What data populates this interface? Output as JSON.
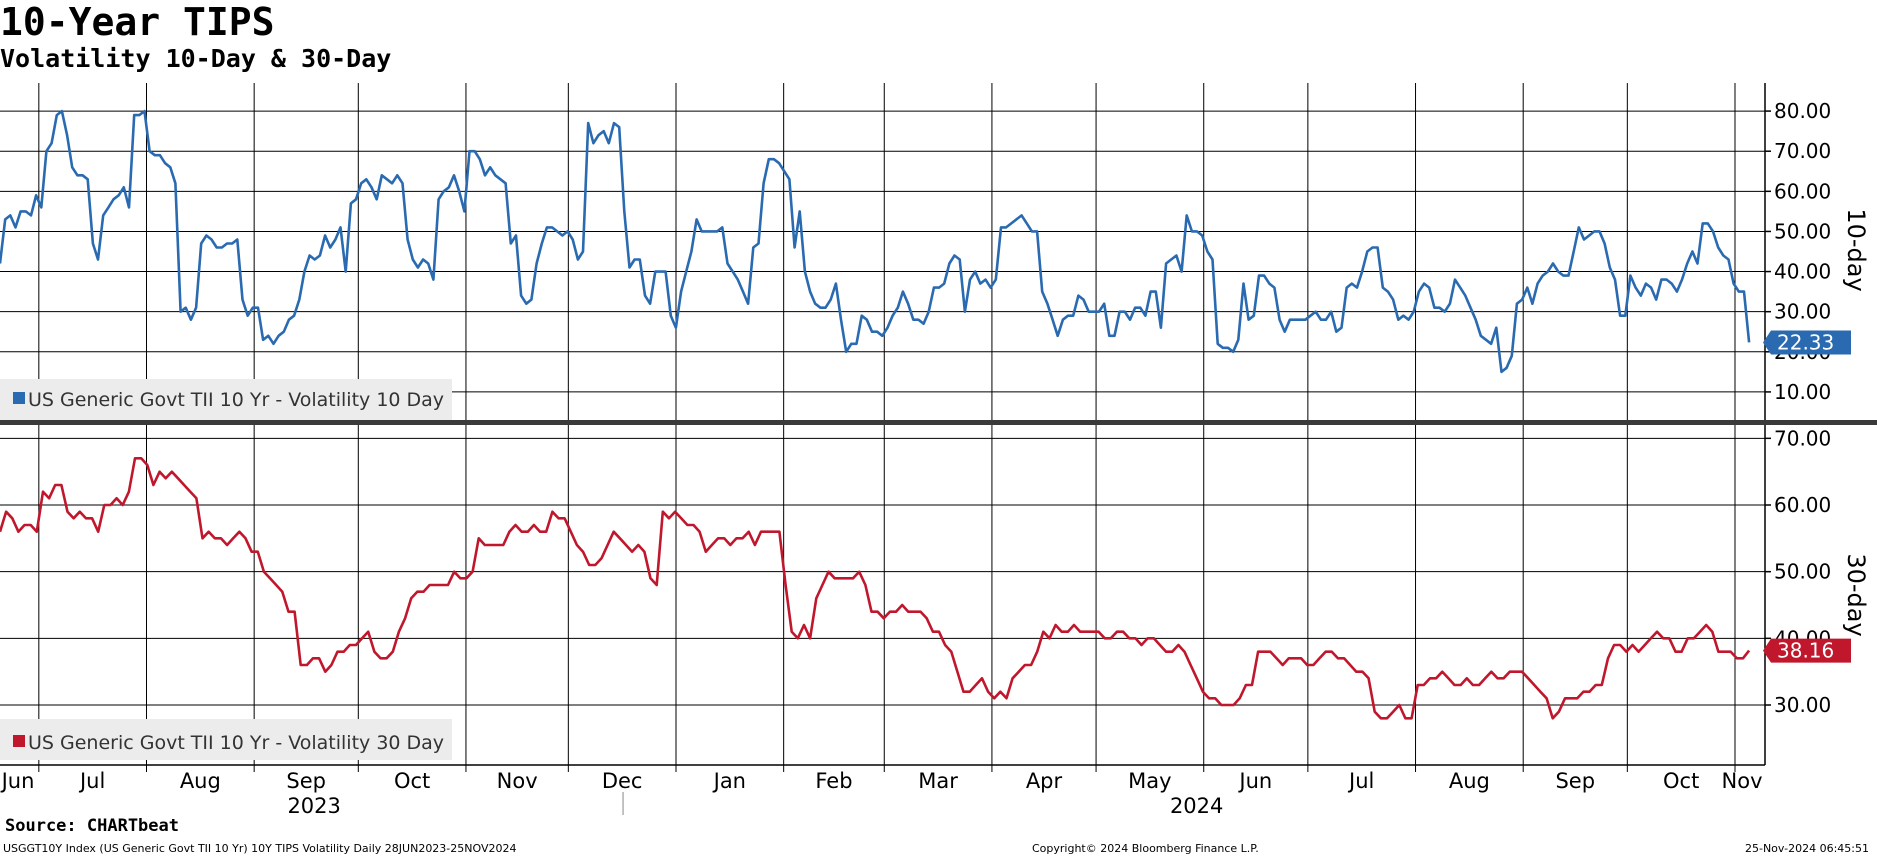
{
  "header": {
    "title": "10-Year TIPS",
    "subtitle": "Volatility 10-Day & 30-Day"
  },
  "footer": {
    "source": "Source: CHARTbeat",
    "ticker_line": "USGGT10Y Index (US Generic Govt TII 10 Yr) 10Y TIPS Volatility  Daily 28JUN2023-25NOV2024",
    "copyright": "Copyright© 2024 Bloomberg Finance L.P.",
    "timestamp": "25-Nov-2024 06:45:51"
  },
  "chart_data": [
    {
      "type": "line",
      "panel": "top",
      "ylabel": "10-day",
      "ylim": [
        3,
        87
      ],
      "yticks": [
        "10.00",
        "20.00",
        "30.00",
        "40.00",
        "50.00",
        "60.00",
        "70.00",
        "80.00"
      ],
      "last_value_label": "22.33",
      "color": "#2a6ab0",
      "legend": "US Generic Govt TII 10 Yr - Volatility 10 Day",
      "legend_placement": "bottom-left",
      "grid": true,
      "series": [
        {
          "name": "US Generic Govt TII 10 Yr - Volatility 10 Day",
          "values": [
            42,
            53,
            54,
            51,
            55,
            55,
            54,
            59,
            56,
            70,
            72,
            79,
            80,
            74,
            66,
            64,
            64,
            63,
            47,
            43,
            54,
            56,
            58,
            59,
            61,
            56,
            79,
            79,
            80,
            70,
            69,
            69,
            67,
            66,
            62,
            30,
            31,
            28,
            31,
            47,
            49,
            48,
            46,
            46,
            47,
            47,
            48,
            33,
            29,
            31,
            31,
            23,
            24,
            22,
            24,
            25,
            28,
            29,
            33,
            40,
            44,
            43,
            44,
            49,
            46,
            48,
            51,
            40,
            57,
            58,
            62,
            63,
            61,
            58,
            64,
            63,
            62,
            64,
            62,
            48,
            43,
            41,
            43,
            42,
            38,
            58,
            60,
            61,
            64,
            60,
            55,
            70,
            70,
            68,
            64,
            66,
            64,
            63,
            62,
            47,
            49,
            34,
            32,
            33,
            42,
            47,
            51,
            51,
            50,
            49,
            50,
            48,
            43,
            45,
            77,
            72,
            74,
            75,
            72,
            77,
            76,
            55,
            41,
            43,
            43,
            34,
            32,
            40,
            40,
            40,
            29,
            26,
            35,
            40,
            45,
            53,
            50,
            50,
            50,
            50,
            51,
            42,
            40,
            38,
            35,
            32,
            46,
            47,
            62,
            68,
            68,
            67,
            65,
            63,
            46,
            55,
            40,
            35,
            32,
            31,
            31,
            33,
            37,
            28,
            20,
            22,
            22,
            29,
            28,
            25,
            25,
            24,
            26,
            29,
            31,
            35,
            32,
            28,
            28,
            27,
            30,
            36,
            36,
            37,
            42,
            44,
            43,
            30,
            38,
            40,
            37,
            38,
            36,
            38,
            51,
            51,
            52,
            53,
            54,
            52,
            50,
            50,
            35,
            32,
            28,
            24,
            28,
            29,
            29,
            34,
            33,
            30,
            30,
            30,
            32,
            24,
            24,
            30,
            30,
            28,
            31,
            31,
            29,
            35,
            35,
            26,
            42,
            43,
            44,
            40,
            54,
            50,
            50,
            49,
            45,
            43,
            22,
            21,
            21,
            20,
            23,
            37,
            28,
            29,
            39,
            39,
            37,
            36,
            28,
            25,
            28,
            28,
            28,
            28,
            29,
            30,
            28,
            28,
            30,
            25,
            26,
            36,
            37,
            36,
            40,
            45,
            46,
            46,
            36,
            35,
            33,
            28,
            29,
            28,
            30,
            35,
            37,
            36,
            31,
            31,
            30,
            32,
            38,
            36,
            34,
            31,
            28,
            24,
            23,
            22,
            26,
            15,
            16,
            19,
            32,
            33,
            36,
            32,
            37,
            39,
            40,
            42,
            40,
            39,
            39,
            45,
            51,
            48,
            49,
            50,
            50,
            47,
            41,
            38,
            29,
            29,
            39,
            36,
            34,
            37,
            36,
            33,
            38,
            38,
            37,
            35,
            38,
            42,
            45,
            42,
            52,
            52,
            50,
            46,
            44,
            43,
            37,
            35,
            35,
            22.33
          ]
        }
      ]
    },
    {
      "type": "line",
      "panel": "bottom",
      "ylabel": "30-day",
      "ylim": [
        21,
        72
      ],
      "yticks": [
        "30.00",
        "40.00",
        "50.00",
        "60.00",
        "70.00"
      ],
      "last_value_label": "38.16",
      "color": "#c0172d",
      "legend": "US Generic Govt TII 10 Yr - Volatility 30 Day",
      "legend_placement": "bottom-left",
      "grid": true,
      "series": [
        {
          "name": "US Generic Govt TII 10 Yr - Volatility 30 Day",
          "values": [
            56,
            59,
            58,
            56,
            57,
            57,
            56,
            62,
            61,
            63,
            63,
            59,
            58,
            59,
            58,
            58,
            56,
            60,
            60,
            61,
            60,
            62,
            67,
            67,
            66,
            63,
            65,
            64,
            65,
            64,
            63,
            62,
            61,
            55,
            56,
            55,
            55,
            54,
            55,
            56,
            55,
            53,
            53,
            50,
            49,
            48,
            47,
            44,
            44,
            36,
            36,
            37,
            37,
            35,
            36,
            38,
            38,
            39,
            39,
            40,
            41,
            38,
            37,
            37,
            38,
            41,
            43,
            46,
            47,
            47,
            48,
            48,
            48,
            48,
            50,
            49,
            49,
            50,
            55,
            54,
            54,
            54,
            54,
            56,
            57,
            56,
            56,
            57,
            56,
            56,
            59,
            58,
            58,
            56,
            54,
            53,
            51,
            51,
            52,
            54,
            56,
            55,
            54,
            53,
            54,
            53,
            49,
            48,
            59,
            58,
            59,
            58,
            57,
            57,
            56,
            53,
            54,
            55,
            55,
            54,
            55,
            55,
            56,
            54,
            56,
            56,
            56,
            56,
            48,
            41,
            40,
            42,
            40,
            46,
            48,
            50,
            49,
            49,
            49,
            49,
            50,
            48,
            44,
            44,
            43,
            44,
            44,
            45,
            44,
            44,
            44,
            43,
            41,
            41,
            39,
            38,
            35,
            32,
            32,
            33,
            34,
            32,
            31,
            32,
            31,
            34,
            35,
            36,
            36,
            38,
            41,
            40,
            42,
            41,
            41,
            42,
            41,
            41,
            41,
            41,
            40,
            40,
            41,
            41,
            40,
            40,
            39,
            40,
            40,
            39,
            38,
            38,
            39,
            38,
            36,
            34,
            32,
            31,
            31,
            30,
            30,
            30,
            31,
            33,
            33,
            38,
            38,
            38,
            37,
            36,
            37,
            37,
            37,
            36,
            36,
            37,
            38,
            38,
            37,
            37,
            36,
            35,
            35,
            34,
            29,
            28,
            28,
            29,
            30,
            28,
            28,
            33,
            33,
            34,
            34,
            35,
            34,
            33,
            33,
            34,
            33,
            33,
            34,
            35,
            34,
            34,
            35,
            35,
            35,
            34,
            33,
            32,
            31,
            28,
            29,
            31,
            31,
            31,
            32,
            32,
            33,
            33,
            37,
            39,
            39,
            38,
            39,
            38,
            39,
            40,
            41,
            40,
            40,
            38,
            38,
            40,
            40,
            41,
            42,
            41,
            38,
            38,
            38,
            37,
            37,
            38.16
          ]
        }
      ]
    }
  ],
  "x_axis": {
    "months": [
      {
        "label": "Jun",
        "pos": 0.0
      },
      {
        "label": "Jul",
        "pos": 0.022
      },
      {
        "label": "Aug",
        "pos": 0.083
      },
      {
        "label": "Sep",
        "pos": 0.144
      },
      {
        "label": "Oct",
        "pos": 0.203
      },
      {
        "label": "Nov",
        "pos": 0.264
      },
      {
        "label": "Dec",
        "pos": 0.322
      },
      {
        "label": "Jan",
        "pos": 0.383
      },
      {
        "label": "Feb",
        "pos": 0.444
      },
      {
        "label": "Mar",
        "pos": 0.501
      },
      {
        "label": "Apr",
        "pos": 0.562
      },
      {
        "label": "May",
        "pos": 0.621
      },
      {
        "label": "Jun",
        "pos": 0.682
      },
      {
        "label": "Jul",
        "pos": 0.741
      },
      {
        "label": "Aug",
        "pos": 0.802
      },
      {
        "label": "Sep",
        "pos": 0.863
      },
      {
        "label": "Oct",
        "pos": 0.922
      },
      {
        "label": "Nov",
        "pos": 0.983
      }
    ],
    "years": [
      {
        "label": "2023",
        "pos": 0.178
      },
      {
        "label": "2024",
        "pos": 0.678
      }
    ],
    "year_divider_pos": 0.353,
    "end_pos": 0.991
  }
}
